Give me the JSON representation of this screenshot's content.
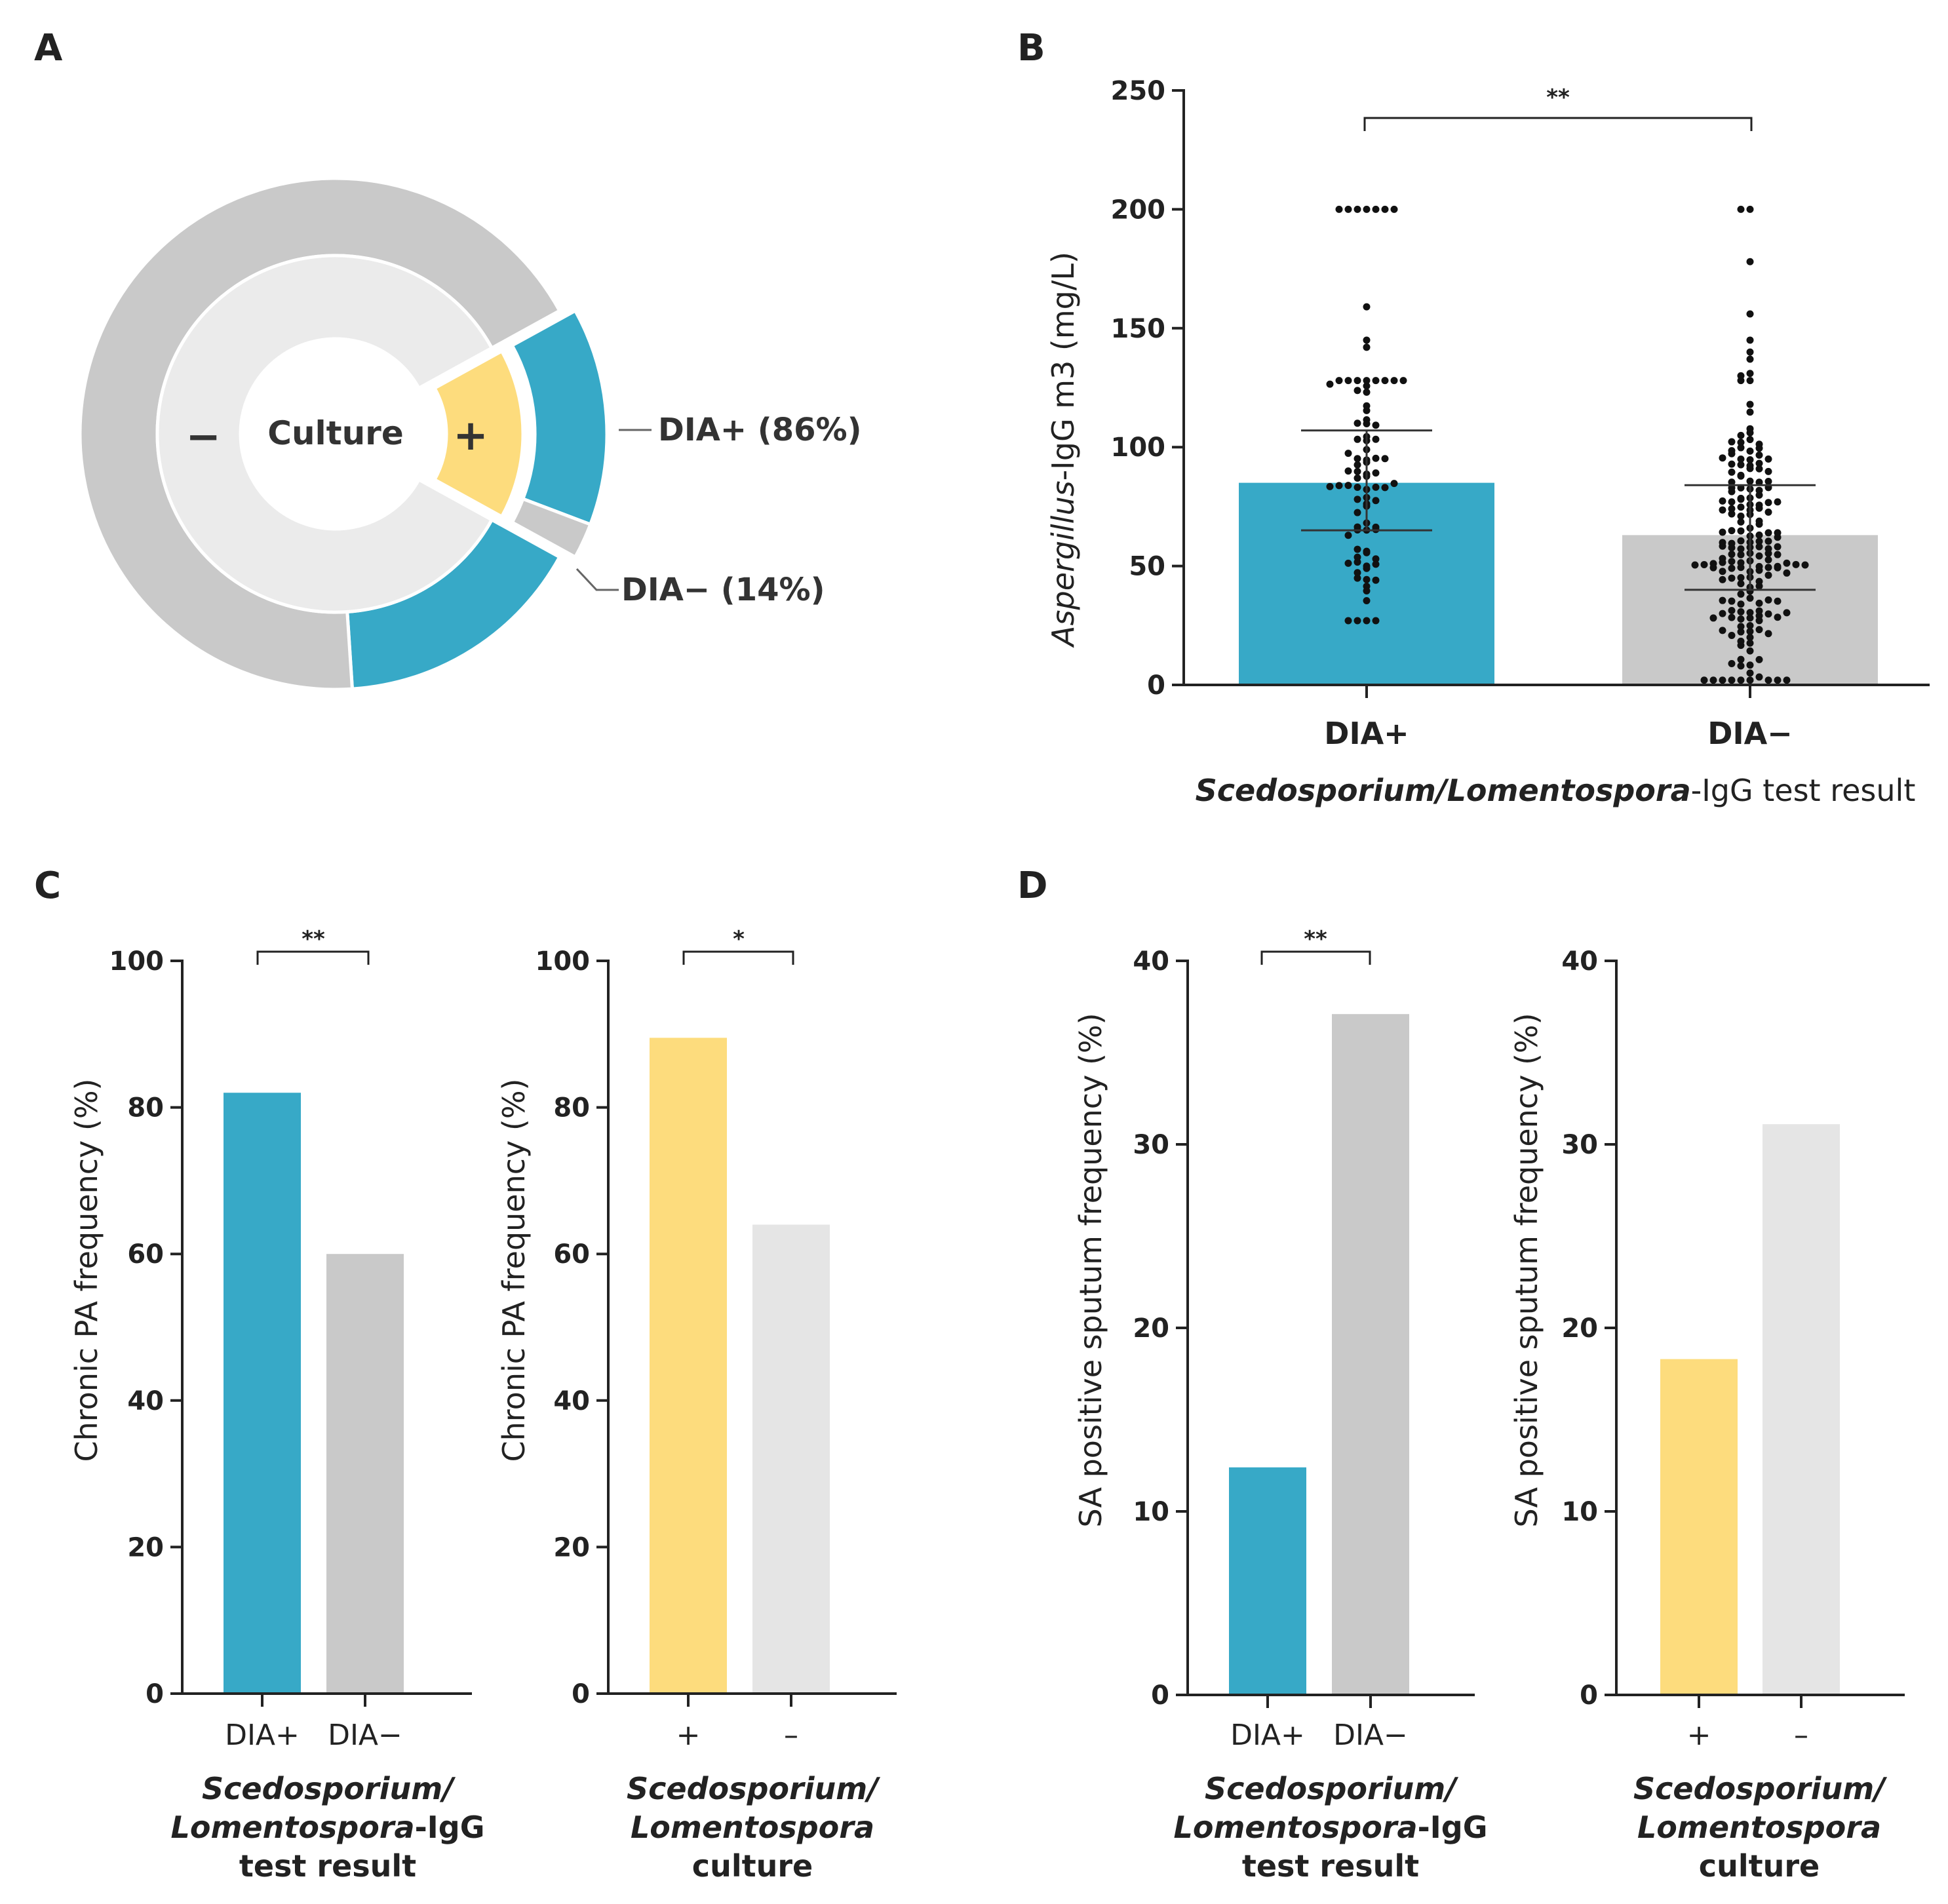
{
  "panels": {
    "a": {
      "label": "A"
    },
    "b": {
      "label": "B"
    },
    "c": {
      "label": "C"
    },
    "d": {
      "label": "D"
    }
  },
  "colors": {
    "blue": "#37A9C7",
    "yellow": "#FDDC7D",
    "gray": "#C9C9C9",
    "light_gray": "#E5E5E5",
    "inner_gray": "#EBEBEB"
  },
  "chart_data": [
    {
      "id": "A",
      "type": "pie",
      "title": "",
      "center_label": "Culture",
      "inner_ring": [
        {
          "name": "+",
          "value": 16,
          "color": "yellow"
        },
        {
          "name": "−",
          "value": 84,
          "color": "inner_gray"
        }
      ],
      "outer_ring": [
        {
          "name": "DIA+ (86%)",
          "parent": "+",
          "value": 86,
          "color": "blue"
        },
        {
          "name": "DIA− (14%)",
          "parent": "+",
          "value": 14,
          "color": "gray"
        },
        {
          "name": "DIA+",
          "parent": "−",
          "value": 19,
          "color": "blue"
        },
        {
          "name": "DIA−",
          "parent": "−",
          "value": 81,
          "color": "gray"
        }
      ],
      "legend": [
        "DIA+ (86%)",
        "DIA− (14%)"
      ]
    },
    {
      "id": "B",
      "type": "bar",
      "categories": [
        "DIA+",
        "DIA−"
      ],
      "values": [
        85,
        63
      ],
      "error_low": [
        65,
        40
      ],
      "error_high": [
        107,
        84
      ],
      "ylabel_italic": "Aspergillus",
      "ylabel_rest": "-IgG m3 (mg/L)",
      "xlabel_italic": "Scedosporium/Lomentospora",
      "xlabel_rest": "-IgG test result",
      "ylim": [
        0,
        250
      ],
      "yticks": [
        "0",
        "50",
        "100",
        "150",
        "200",
        "250"
      ],
      "significance": "**",
      "overlay": "individual data points (scatter)"
    },
    {
      "id": "C1",
      "type": "bar",
      "categories": [
        "DIA+",
        "DIA−"
      ],
      "values": [
        82,
        60
      ],
      "ylabel": "Chronic PA frequency (%)",
      "xlabel_lines": [
        "Scedosporium/",
        "Lomentospora",
        "-IgG",
        "test result"
      ],
      "ylim": [
        0,
        100
      ],
      "yticks": [
        "0",
        "20",
        "40",
        "60",
        "80",
        "100"
      ],
      "significance": "**"
    },
    {
      "id": "C2",
      "type": "bar",
      "categories": [
        "+",
        "–"
      ],
      "values": [
        89.5,
        64
      ],
      "ylabel": "Chronic PA frequency (%)",
      "xlabel_lines": [
        "Scedosporium/",
        "Lomentospora",
        "culture"
      ],
      "ylim": [
        0,
        100
      ],
      "yticks": [
        "0",
        "20",
        "40",
        "60",
        "80",
        "100"
      ],
      "significance": "*"
    },
    {
      "id": "D1",
      "type": "bar",
      "categories": [
        "DIA+",
        "DIA−"
      ],
      "values": [
        12.4,
        37.1
      ],
      "ylabel": "SA positive sputum  frequency (%)",
      "xlabel_lines": [
        "Scedosporium/",
        "Lomentospora",
        "-IgG",
        "test result"
      ],
      "ylim": [
        0,
        40
      ],
      "yticks": [
        "0",
        "10",
        "20",
        "30",
        "40"
      ],
      "significance": "**"
    },
    {
      "id": "D2",
      "type": "bar",
      "categories": [
        "+",
        "–"
      ],
      "values": [
        18.3,
        31.1
      ],
      "ylabel": "SA positive sputum  frequency (%)",
      "xlabel_lines": [
        "Scedosporium/",
        "Lomentospora",
        "culture"
      ],
      "ylim": [
        0,
        40
      ],
      "yticks": [
        "0",
        "10",
        "20",
        "30",
        "40"
      ],
      "significance": ""
    }
  ]
}
